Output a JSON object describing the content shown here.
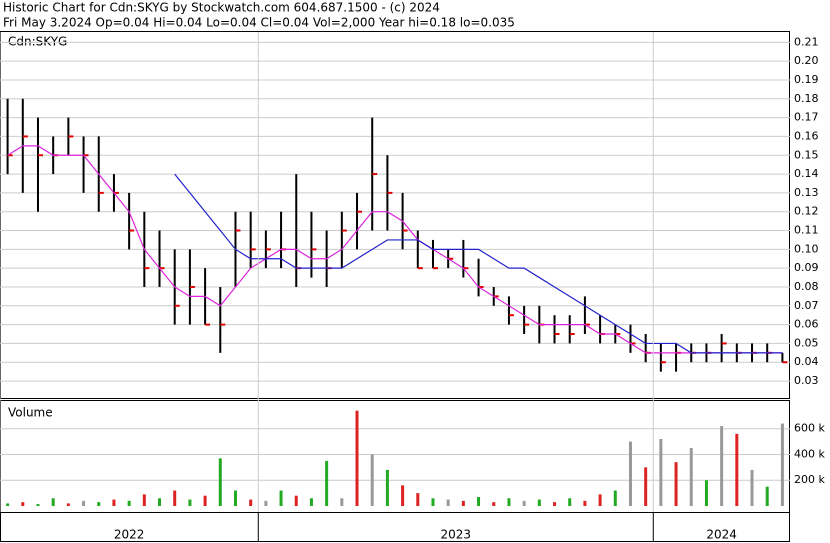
{
  "header": {
    "line1": "Historic Chart for Cdn:SKYG by Stockwatch.com 604.687.1500 - (c) 2024",
    "line2": "Fri May  3.2024  Op=0.04  Hi=0.04  Lo=0.04  Cl=0.04  Vol=2,000  Year hi=0.18  lo=0.035"
  },
  "chart_data": [
    {
      "type": "ohlc",
      "title": "Cdn:SKYG",
      "color": "#000000",
      "close_color": "#dd0000",
      "xlim": [
        0,
        52
      ],
      "ylim": [
        0.021,
        0.2155
      ],
      "grid": true,
      "yticks": [
        0.03,
        0.04,
        0.05,
        0.06,
        0.07,
        0.08,
        0.09,
        {
          "value": 0.1,
          "label": "0.10"
        },
        0.11,
        0.12,
        0.13,
        0.14,
        0.15,
        0.16,
        0.17,
        0.18,
        0.19,
        {
          "value": 0.2,
          "label": "0.20"
        },
        0.21
      ],
      "high": [
        0.18,
        0.18,
        0.17,
        0.16,
        0.17,
        0.16,
        0.16,
        0.14,
        0.13,
        0.12,
        0.11,
        0.1,
        0.1,
        0.09,
        0.08,
        0.12,
        0.12,
        0.11,
        0.12,
        0.14,
        0.12,
        0.11,
        0.12,
        0.13,
        0.17,
        0.15,
        0.13,
        0.11,
        0.105,
        0.1,
        0.105,
        0.095,
        0.08,
        0.075,
        0.07,
        0.07,
        0.065,
        0.065,
        0.075,
        0.065,
        0.06,
        0.06,
        0.055,
        0.05,
        0.05,
        0.05,
        0.05,
        0.055,
        0.05,
        0.05,
        0.05,
        0.045
      ],
      "low": [
        0.14,
        0.13,
        0.12,
        0.14,
        0.15,
        0.13,
        0.12,
        0.12,
        0.1,
        0.08,
        0.08,
        0.06,
        0.06,
        0.06,
        0.045,
        0.08,
        0.09,
        0.09,
        0.09,
        0.08,
        0.085,
        0.08,
        0.09,
        0.1,
        0.11,
        0.11,
        0.1,
        0.09,
        0.09,
        0.09,
        0.085,
        0.075,
        0.07,
        0.06,
        0.055,
        0.05,
        0.05,
        0.05,
        0.055,
        0.05,
        0.05,
        0.045,
        0.04,
        0.035,
        0.035,
        0.04,
        0.04,
        0.04,
        0.04,
        0.04,
        0.04,
        0.04
      ],
      "close": [
        0.15,
        0.16,
        0.15,
        0.15,
        0.16,
        0.15,
        0.13,
        0.13,
        0.11,
        0.09,
        0.09,
        0.07,
        0.08,
        0.06,
        0.06,
        0.11,
        0.1,
        0.1,
        0.1,
        0.09,
        0.1,
        0.09,
        0.11,
        0.12,
        0.14,
        0.13,
        0.11,
        0.09,
        0.09,
        0.095,
        0.09,
        0.08,
        0.075,
        0.065,
        0.06,
        0.06,
        0.055,
        0.055,
        0.06,
        0.055,
        0.055,
        0.05,
        0.045,
        0.04,
        0.045,
        0.045,
        0.045,
        0.05,
        0.045,
        0.045,
        0.045,
        0.04
      ],
      "lines": [
        {
          "color": "#dd22dd",
          "values": [
            0.15,
            0.155,
            0.155,
            0.15,
            0.15,
            0.15,
            0.14,
            0.13,
            0.12,
            0.1,
            0.09,
            0.08,
            0.075,
            0.075,
            0.07,
            0.08,
            0.09,
            0.095,
            0.1,
            0.1,
            0.095,
            0.095,
            0.1,
            0.11,
            0.12,
            0.12,
            0.115,
            0.105,
            0.1,
            0.095,
            0.09,
            0.08,
            0.075,
            0.07,
            0.065,
            0.06,
            0.06,
            0.06,
            0.06,
            0.055,
            0.055,
            0.05,
            0.045,
            0.045,
            0.045,
            0.045,
            0.045,
            0.045,
            0.045,
            0.045,
            0.045,
            0.045
          ]
        },
        {
          "color": "#2222cc",
          "values": [
            null,
            null,
            null,
            null,
            null,
            null,
            null,
            null,
            null,
            null,
            null,
            0.14,
            0.13,
            0.12,
            0.11,
            0.1,
            0.095,
            0.095,
            0.095,
            0.09,
            0.09,
            0.09,
            0.09,
            0.095,
            0.1,
            0.105,
            0.105,
            0.105,
            0.1,
            0.1,
            0.1,
            0.1,
            0.095,
            0.09,
            0.09,
            0.085,
            0.08,
            0.075,
            0.07,
            0.065,
            0.06,
            0.055,
            0.05,
            0.05,
            0.05,
            0.045,
            0.045,
            0.045,
            0.045,
            0.045,
            0.045,
            0.045
          ]
        }
      ]
    },
    {
      "type": "volume",
      "title": "Volume",
      "xlim": [
        0,
        52
      ],
      "ylim": [
        0,
        815000
      ],
      "grid": true,
      "yticks": [
        {
          "value": 200000,
          "label": "200 k"
        },
        {
          "value": 400000,
          "label": "400 k"
        },
        {
          "value": 600000,
          "label": "600 k"
        }
      ],
      "xticks": [
        {
          "value": 0,
          "label": "2022"
        },
        {
          "value": 17,
          "label": "2023"
        },
        {
          "value": 43,
          "label": "2024"
        }
      ],
      "values": [
        20000,
        30000,
        15000,
        60000,
        20000,
        40000,
        30000,
        50000,
        40000,
        90000,
        60000,
        120000,
        50000,
        80000,
        370000,
        120000,
        50000,
        40000,
        120000,
        80000,
        60000,
        350000,
        60000,
        740000,
        400000,
        280000,
        160000,
        100000,
        60000,
        50000,
        40000,
        70000,
        30000,
        60000,
        40000,
        50000,
        30000,
        60000,
        40000,
        90000,
        120000,
        500000,
        300000,
        520000,
        340000,
        450000,
        200000,
        620000,
        560000,
        280000,
        150000,
        640000
      ],
      "colors": [
        "#22aa22",
        "#dd2222",
        "#22aa22",
        "#22aa22",
        "#dd2222",
        "#999999",
        "#22aa22",
        "#dd2222",
        "#22aa22",
        "#dd2222",
        "#22aa22",
        "#dd2222",
        "#22aa22",
        "#dd2222",
        "#22aa22",
        "#22aa22",
        "#dd2222",
        "#999999",
        "#22aa22",
        "#dd2222",
        "#22aa22",
        "#22aa22",
        "#999999",
        "#dd2222",
        "#999999",
        "#22aa22",
        "#dd2222",
        "#dd2222",
        "#22aa22",
        "#999999",
        "#dd2222",
        "#22aa22",
        "#dd2222",
        "#22aa22",
        "#999999",
        "#22aa22",
        "#dd2222",
        "#22aa22",
        "#dd2222",
        "#dd2222",
        "#22aa22",
        "#999999",
        "#dd2222",
        "#999999",
        "#dd2222",
        "#999999",
        "#22aa22",
        "#999999",
        "#dd2222",
        "#999999",
        "#22aa22",
        "#999999"
      ]
    }
  ]
}
